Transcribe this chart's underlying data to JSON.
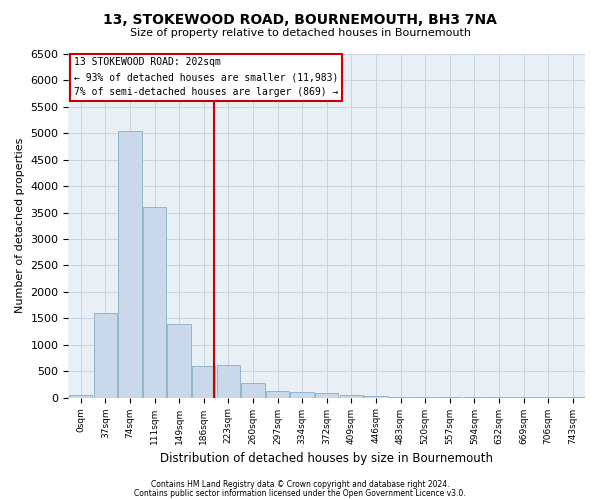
{
  "title": "13, STOKEWOOD ROAD, BOURNEMOUTH, BH3 7NA",
  "subtitle": "Size of property relative to detached houses in Bournemouth",
  "xlabel": "Distribution of detached houses by size in Bournemouth",
  "ylabel": "Number of detached properties",
  "footer1": "Contains HM Land Registry data © Crown copyright and database right 2024.",
  "footer2": "Contains public sector information licensed under the Open Government Licence v3.0.",
  "annotation_line1": "13 STOKEWOOD ROAD: 202sqm",
  "annotation_line2": "← 93% of detached houses are smaller (11,983)",
  "annotation_line3": "7% of semi-detached houses are larger (869) →",
  "property_size_sqm": 202,
  "bar_color": "#cad9ea",
  "bar_edge_color": "#8aaec8",
  "vline_color": "#cc0000",
  "grid_color": "#c8d4e0",
  "bg_color": "#e8eff5",
  "annotation_box_color": "#ffffff",
  "annotation_box_edge": "#cc0000",
  "categories": [
    "0sqm",
    "37sqm",
    "74sqm",
    "111sqm",
    "149sqm",
    "186sqm",
    "223sqm",
    "260sqm",
    "297sqm",
    "334sqm",
    "372sqm",
    "409sqm",
    "446sqm",
    "483sqm",
    "520sqm",
    "557sqm",
    "594sqm",
    "632sqm",
    "669sqm",
    "706sqm",
    "743sqm"
  ],
  "values": [
    50,
    1600,
    5050,
    3600,
    1400,
    600,
    620,
    280,
    130,
    110,
    80,
    50,
    30,
    15,
    10,
    8,
    5,
    4,
    3,
    2,
    2
  ],
  "ylim": [
    0,
    6500
  ],
  "yticks": [
    0,
    500,
    1000,
    1500,
    2000,
    2500,
    3000,
    3500,
    4000,
    4500,
    5000,
    5500,
    6000,
    6500
  ]
}
